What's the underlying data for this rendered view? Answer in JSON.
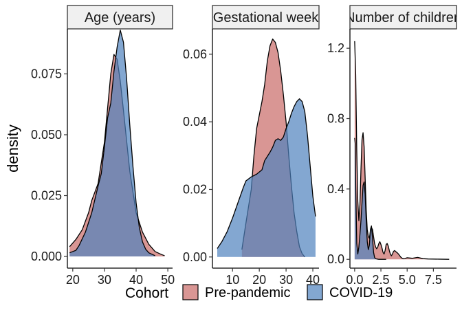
{
  "chart_data": {
    "type": "area",
    "ylabel": "density",
    "colors": {
      "Pre-pandemic": "#c0504d",
      "COVID-19": "#4f81bd"
    },
    "legend": {
      "title": "Cohort",
      "placement": "bottom",
      "entries": [
        "Pre-pandemic",
        "COVID-19"
      ]
    },
    "panels": [
      {
        "title": "Age (years)",
        "xlim": [
          18.3,
          51.5
        ],
        "ylim": [
          -0.0048,
          0.0935
        ],
        "x_ticks": [
          20,
          30,
          40,
          50
        ],
        "x_tick_labels": [
          "20",
          "30",
          "40",
          "50"
        ],
        "y_ticks": [
          0,
          0.025,
          0.05,
          0.075
        ],
        "y_tick_labels": [
          "0.000",
          "0.025",
          "0.050",
          "0.075"
        ],
        "series": [
          {
            "name": "Pre-pandemic",
            "x": [
              19,
              21,
              23,
              25,
              26,
              28,
              30,
              32,
              33,
              34,
              35,
              36,
              38,
              40,
              42,
              44,
              46,
              48,
              49
            ],
            "y": [
              0.004,
              0.007,
              0.011,
              0.018,
              0.023,
              0.03,
              0.047,
              0.075,
              0.083,
              0.081,
              0.072,
              0.06,
              0.035,
              0.018,
              0.01,
              0.005,
              0.002,
              0.0008,
              0.0003
            ]
          },
          {
            "name": "COVID-19",
            "x": [
              19,
              21,
              22,
              24,
              26,
              28,
              29,
              30,
              31,
              32,
              33,
              34,
              35,
              36,
              37,
              38,
              39,
              40,
              41,
              42,
              43,
              44,
              46
            ],
            "y": [
              0.0015,
              0.0025,
              0.0045,
              0.01,
              0.018,
              0.029,
              0.034,
              0.045,
              0.057,
              0.063,
              0.076,
              0.086,
              0.093,
              0.088,
              0.073,
              0.054,
              0.037,
              0.022,
              0.012,
              0.006,
              0.003,
              0.0015,
              0.0003
            ]
          }
        ]
      },
      {
        "title": "Gestational week",
        "xlim": [
          2.5,
          42.3
        ],
        "ylim": [
          -0.0033,
          0.0675
        ],
        "x_ticks": [
          10,
          20,
          30,
          40
        ],
        "x_tick_labels": [
          "10",
          "20",
          "30",
          "40"
        ],
        "y_ticks": [
          0,
          0.02,
          0.04,
          0.06
        ],
        "y_tick_labels": [
          "0.00",
          "0.02",
          "0.04",
          "0.06"
        ],
        "series": [
          {
            "name": "Pre-pandemic",
            "x": [
              13.5,
              15,
              17,
              18,
              19,
              21,
              22,
              23,
              24,
              25,
              26,
              27,
              28,
              29,
              30,
              31,
              32,
              33,
              34,
              35,
              36,
              37
            ],
            "y": [
              0.0022,
              0.01,
              0.02,
              0.03,
              0.038,
              0.046,
              0.051,
              0.058,
              0.0625,
              0.0645,
              0.0635,
              0.0605,
              0.055,
              0.048,
              0.04,
              0.03,
              0.021,
              0.013,
              0.0075,
              0.003,
              0.001,
              0
            ]
          },
          {
            "name": "COVID-19",
            "x": [
              4.3,
              6,
              8,
              10,
              12,
              14,
              15,
              17,
              19,
              21,
              22,
              24,
              25,
              26,
              27,
              28,
              29,
              30,
              31,
              32,
              33,
              34,
              35,
              36,
              37,
              38,
              39,
              40,
              41
            ],
            "y": [
              0.0025,
              0.0045,
              0.0075,
              0.0115,
              0.016,
              0.0205,
              0.0225,
              0.0237,
              0.0245,
              0.0258,
              0.0285,
              0.031,
              0.0325,
              0.0345,
              0.035,
              0.0345,
              0.0355,
              0.038,
              0.04,
              0.0425,
              0.0445,
              0.046,
              0.0468,
              0.046,
              0.043,
              0.036,
              0.027,
              0.018,
              0.012
            ]
          }
        ]
      },
      {
        "title": "Number of children",
        "xlim": [
          -0.45,
          9.7
        ],
        "ylim": [
          -0.05,
          1.31
        ],
        "x_ticks": [
          0,
          2.5,
          5,
          7.5
        ],
        "x_tick_labels": [
          "0.0",
          "2.5",
          "5.0",
          "7.5"
        ],
        "y_ticks": [
          0,
          0.4,
          0.8,
          1.2
        ],
        "y_tick_labels": [
          "0.0",
          "0.4",
          "0.8",
          "1.2"
        ],
        "series": [
          {
            "name": "Pre-pandemic",
            "x": [
              0,
              0.1,
              0.2,
              0.3,
              0.4,
              0.5,
              0.6,
              0.7,
              0.8,
              0.9,
              1.0,
              1.1,
              1.2,
              1.3,
              1.4,
              1.5,
              1.6,
              1.7,
              1.8,
              1.9,
              2.0,
              2.1,
              2.2,
              2.3,
              2.4,
              2.5,
              2.6,
              2.7,
              2.8,
              2.9,
              3.0,
              3.1,
              3.2,
              3.3,
              3.4,
              3.5,
              3.6,
              3.7,
              3.8,
              3.9,
              4.0,
              4.1,
              4.2,
              4.3,
              4.4,
              4.5,
              4.6,
              4.7,
              4.8,
              5.0,
              5.5,
              6.0,
              6.5,
              7.0,
              8.0,
              9.0
            ],
            "y": [
              1.24,
              1.05,
              0.62,
              0.33,
              0.22,
              0.31,
              0.51,
              0.68,
              0.72,
              0.64,
              0.46,
              0.28,
              0.17,
              0.13,
              0.12,
              0.16,
              0.18,
              0.17,
              0.13,
              0.09,
              0.07,
              0.06,
              0.07,
              0.09,
              0.1,
              0.085,
              0.065,
              0.04,
              0.03,
              0.05,
              0.085,
              0.09,
              0.075,
              0.05,
              0.03,
              0.02,
              0.03,
              0.045,
              0.05,
              0.045,
              0.04,
              0.035,
              0.028,
              0.02,
              0.012,
              0.007,
              0.004,
              0.003,
              0.005,
              0.009,
              0.006,
              0.011,
              0.004,
              0.002,
              0.001,
              0
            ]
          },
          {
            "name": "COVID-19",
            "x": [
              0,
              0.05,
              0.1,
              0.2,
              0.3,
              0.4,
              0.5,
              0.6,
              0.7,
              0.8,
              0.9,
              1.0,
              1.1,
              1.2,
              1.3,
              1.4,
              1.5,
              1.6,
              1.7,
              1.8,
              1.9,
              2.0,
              2.1,
              2.2,
              2.3,
              2.5,
              3.0
            ],
            "y": [
              0.69,
              0.66,
              0.42,
              0.09,
              0.03,
              0.07,
              0.14,
              0.22,
              0.32,
              0.42,
              0.44,
              0.37,
              0.22,
              0.1,
              0.055,
              0.08,
              0.17,
              0.19,
              0.12,
              0.04,
              0.01,
              0.004,
              0.002,
              0.001,
              0,
              0,
              0
            ]
          }
        ]
      }
    ]
  }
}
